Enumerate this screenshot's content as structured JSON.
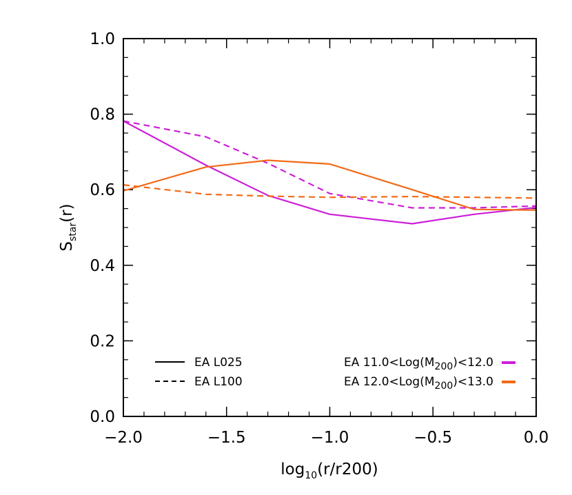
{
  "chart_data": {
    "type": "line",
    "xlabel": {
      "main": "log",
      "sub": "10",
      "rest": "(r/r200)"
    },
    "ylabel": {
      "main": "S",
      "sub": "star",
      "rest": "(r)"
    },
    "xlim": [
      -2.0,
      0.0
    ],
    "ylim": [
      0.0,
      1.0
    ],
    "xticks": [
      -2.0,
      -1.5,
      -1.0,
      -0.5,
      0.0
    ],
    "xtick_labels": [
      "−2.0",
      "−1.5",
      "−1.0",
      "−0.5",
      "0.0"
    ],
    "yticks": [
      0.0,
      0.2,
      0.4,
      0.6,
      0.8,
      1.0
    ],
    "ytick_labels": [
      "0.0",
      "0.2",
      "0.4",
      "0.6",
      "0.8",
      "1.0"
    ],
    "grid": false,
    "legend_style": {
      "position": "bottom",
      "entries": [
        {
          "label": "EA L025",
          "dash": "solid"
        },
        {
          "label": "EA L100",
          "dash": "dashed"
        }
      ]
    },
    "legend_color": {
      "position": "bottom-right",
      "entries": [
        {
          "pre": "EA 11.0<Log(M",
          "sub": "200",
          "post": ")<12.0",
          "color": "#cc1fd8"
        },
        {
          "pre": "EA 12.0<Log(M",
          "sub": "200",
          "post": ")<13.0",
          "color": "#f26a16"
        }
      ]
    },
    "series": [
      {
        "color": "#cc1fd8",
        "dash": "solid",
        "x": [
          -2.0,
          -1.6,
          -1.3,
          -1.0,
          -0.6,
          -0.3,
          0.0
        ],
        "y": [
          0.782,
          0.665,
          0.585,
          0.535,
          0.51,
          0.535,
          0.553
        ]
      },
      {
        "color": "#cc1fd8",
        "dash": "dashed",
        "x": [
          -2.0,
          -1.6,
          -1.3,
          -1.0,
          -0.6,
          -0.3,
          0.0
        ],
        "y": [
          0.782,
          0.74,
          0.67,
          0.59,
          0.552,
          0.552,
          0.557
        ]
      },
      {
        "color": "#f26a16",
        "dash": "solid",
        "x": [
          -2.0,
          -1.6,
          -1.3,
          -1.0,
          -0.6,
          -0.3,
          0.0
        ],
        "y": [
          0.597,
          0.66,
          0.678,
          0.668,
          0.6,
          0.548,
          0.546
        ]
      },
      {
        "color": "#f26a16",
        "dash": "dashed",
        "x": [
          -2.0,
          -1.6,
          -1.3,
          -1.0,
          -0.6,
          -0.3,
          0.0
        ],
        "y": [
          0.613,
          0.588,
          0.583,
          0.58,
          0.582,
          0.58,
          0.578
        ]
      }
    ]
  }
}
